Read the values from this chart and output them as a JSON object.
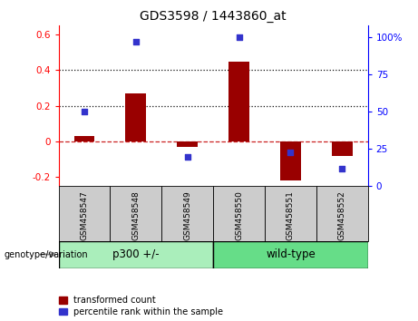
{
  "title": "GDS3598 / 1443860_at",
  "categories": [
    "GSM458547",
    "GSM458548",
    "GSM458549",
    "GSM458550",
    "GSM458551",
    "GSM458552"
  ],
  "red_values": [
    0.03,
    0.27,
    -0.03,
    0.45,
    -0.22,
    -0.08
  ],
  "blue_values_pct": [
    50,
    97,
    20,
    100,
    23,
    12
  ],
  "ylim_left": [
    -0.25,
    0.65
  ],
  "ylim_right": [
    0,
    108
  ],
  "yticks_left": [
    -0.2,
    0.0,
    0.2,
    0.4,
    0.6
  ],
  "yticks_right": [
    0,
    25,
    50,
    75,
    100
  ],
  "ytick_labels_left": [
    "-0.2",
    "0",
    "0.2",
    "0.4",
    "0.6"
  ],
  "ytick_labels_right": [
    "0",
    "25",
    "50",
    "75",
    "100%"
  ],
  "hlines": [
    0.2,
    0.4
  ],
  "group1_label": "p300 +/-",
  "group2_label": "wild-type",
  "legend_red": "transformed count",
  "legend_blue": "percentile rank within the sample",
  "genotype_label": "genotype/variation",
  "bar_color_red": "#990000",
  "bar_color_blue": "#3333cc",
  "group1_bg": "#aaeebb",
  "group2_bg": "#66dd88",
  "xticklabel_bg": "#cccccc",
  "zero_line_color": "#cc2222",
  "hline_color": "#111111",
  "bar_width": 0.4,
  "figsize": [
    4.61,
    3.54
  ],
  "dpi": 100
}
